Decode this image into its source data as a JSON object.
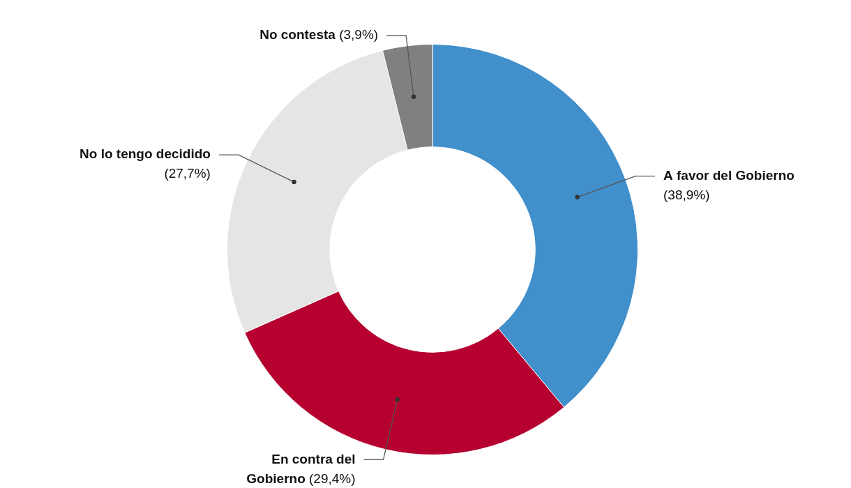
{
  "chart_data": {
    "type": "donut",
    "categories": [
      "A favor del Gobierno",
      "En contra del Gobierno",
      "No lo tengo decidido",
      "No contesta"
    ],
    "values": [
      38.9,
      29.4,
      27.7,
      3.9
    ],
    "colors": [
      "#418fcb",
      "#b50030",
      "#e5e5e5",
      "#808080"
    ],
    "value_labels": [
      "(38,9%)",
      "(29,4%)",
      "(27,7%)",
      "(3,9%)"
    ]
  }
}
